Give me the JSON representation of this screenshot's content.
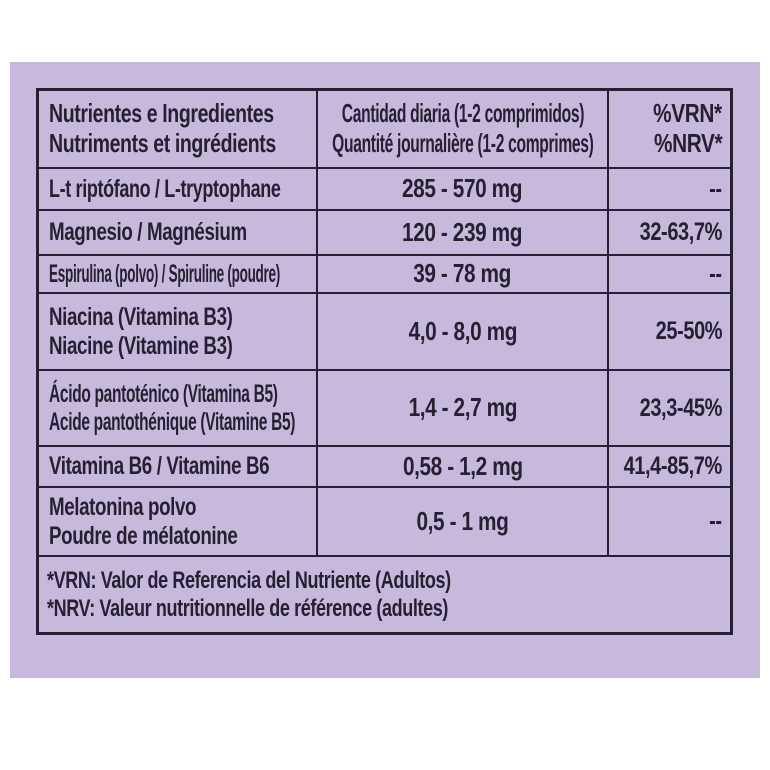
{
  "colors": {
    "background": "#ffffff",
    "panel": "#c7b9dc",
    "ink": "#272033"
  },
  "table": {
    "header": {
      "nutrients_line1": "Nutrientes e Ingredientes",
      "nutrients_line2": "Nutriments et ingrédients",
      "amount_line1": "Cantidad diaria (1-2 comprimidos)",
      "amount_line2": "Quantité journalière (1-2 comprimes)",
      "nrv_line1": "%VRN*",
      "nrv_line2": "%NRV*"
    },
    "rows": [
      {
        "name": [
          "L-t riptófano / L-tryptophane"
        ],
        "amount": "285 - 570 mg",
        "nrv": "--"
      },
      {
        "name": [
          "Magnesio / Magnésium"
        ],
        "amount": "120 - 239 mg",
        "nrv": "32-63,7%"
      },
      {
        "name": [
          "Espirulina (polvo) / Spiruline (poudre)"
        ],
        "amount": "39 - 78 mg",
        "nrv": "--"
      },
      {
        "name": [
          "Niacina (Vitamina B3)",
          "Niacine (Vitamine B3)"
        ],
        "amount": "4,0 - 8,0 mg",
        "nrv": "25-50%"
      },
      {
        "name": [
          "Ácido pantoténico (Vitamina B5)",
          "Acide pantothénique (Vitamine B5)"
        ],
        "amount": "1,4 - 2,7 mg",
        "nrv": "23,3-45%"
      },
      {
        "name": [
          "Vitamina B6 / Vitamine B6"
        ],
        "amount": "0,58 - 1,2 mg",
        "nrv": "41,4-85,7%"
      },
      {
        "name": [
          "Melatonina polvo",
          "Poudre de mélatonine"
        ],
        "amount": "0,5 - 1 mg",
        "nrv": "--"
      }
    ],
    "footnotes": [
      "*VRN: Valor de Referencia del Nutriente (Adultos)",
      "*NRV: Valeur nutritionnelle de référence (adultes)"
    ]
  }
}
